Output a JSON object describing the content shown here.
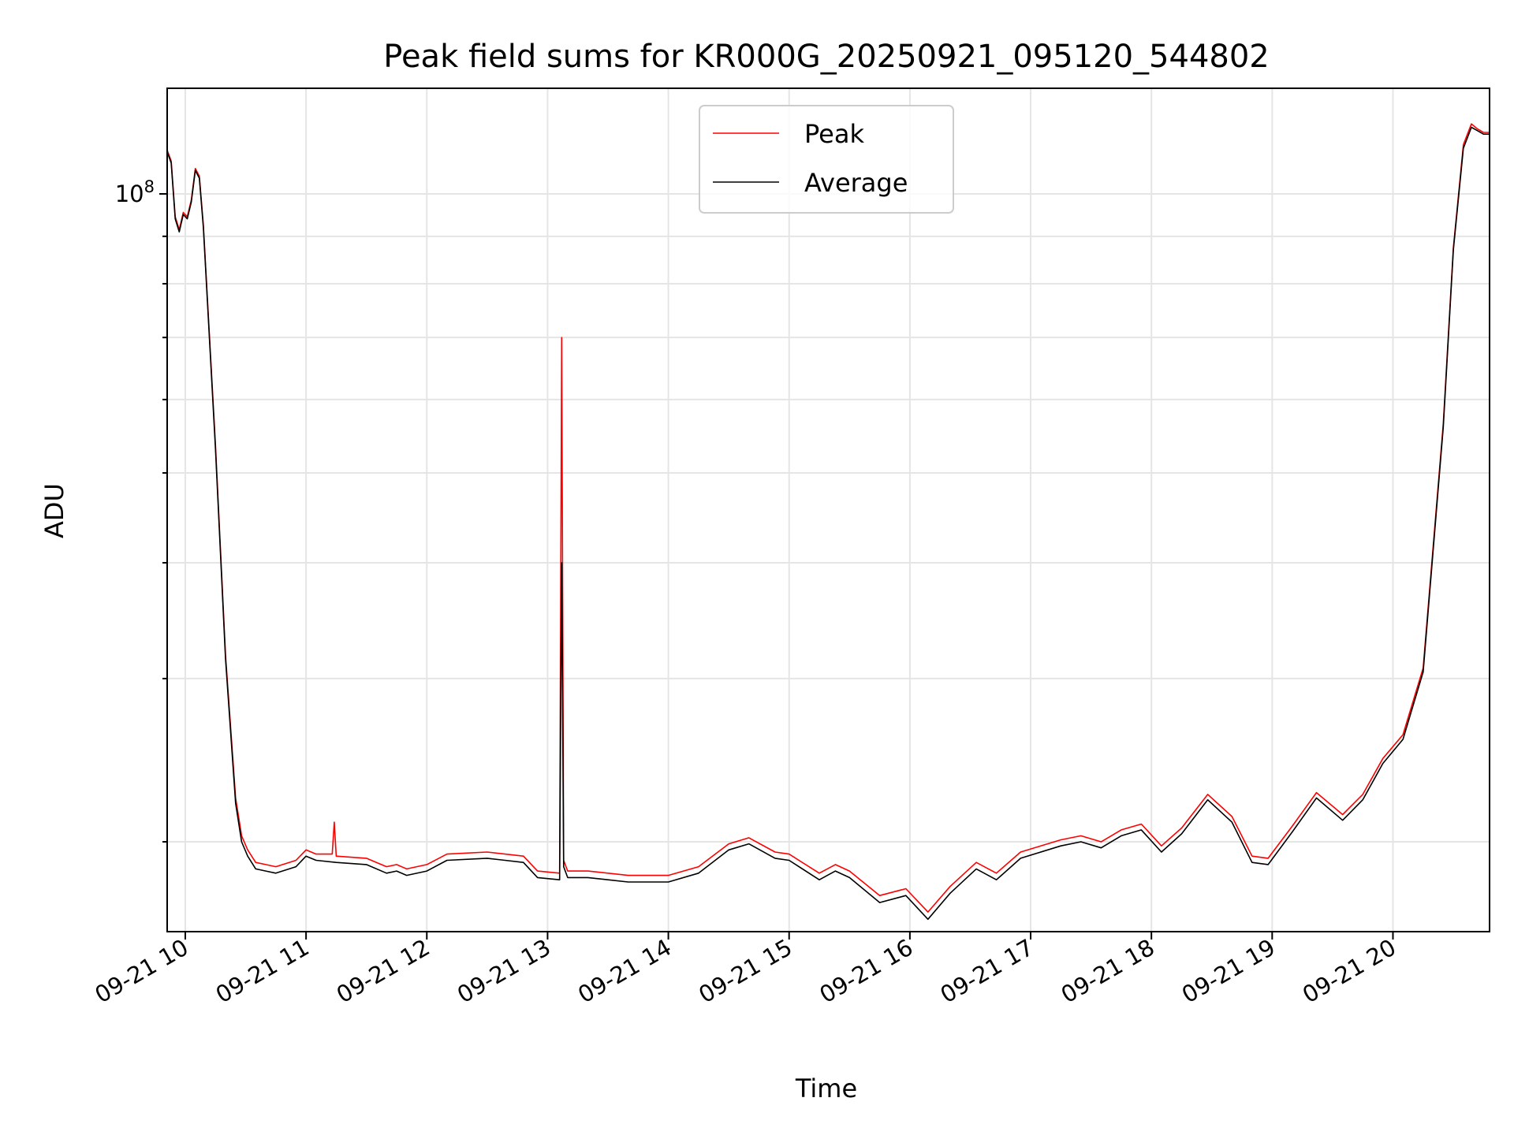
{
  "chart_data": {
    "type": "line",
    "title": "Peak field sums for KR000G_20250921_095120_544802",
    "xlabel": "Time",
    "ylabel": "ADU",
    "yscale": "log",
    "ytick_label": "10^8",
    "ylim": [
      16000000,
      130000000
    ],
    "xlim": [
      "2025-09-21 09:51",
      "2025-09-21 20:48"
    ],
    "x_ticks": [
      "09-21 10",
      "09-21 11",
      "09-21 12",
      "09-21 13",
      "09-21 14",
      "09-21 15",
      "09-21 16",
      "09-21 17",
      "09-21 18",
      "09-21 19",
      "09-21 20"
    ],
    "grid": true,
    "legend": {
      "position": "top-center",
      "entries": [
        "Peak",
        "Average"
      ]
    },
    "colors": {
      "Peak": "#ff0000",
      "Average": "#000000"
    },
    "series": [
      {
        "name": "Average",
        "x": [
          "2025-09-21 09:51",
          "2025-09-21 09:53",
          "2025-09-21 09:55",
          "2025-09-21 09:57",
          "2025-09-21 09:59",
          "2025-09-21 10:01",
          "2025-09-21 10:03",
          "2025-09-21 10:05",
          "2025-09-21 10:07",
          "2025-09-21 10:09",
          "2025-09-21 10:15",
          "2025-09-21 10:20",
          "2025-09-21 10:25",
          "2025-09-21 10:28",
          "2025-09-21 10:31",
          "2025-09-21 10:35",
          "2025-09-21 10:40",
          "2025-09-21 10:45",
          "2025-09-21 10:55",
          "2025-09-21 11:00",
          "2025-09-21 11:05",
          "2025-09-21 11:15",
          "2025-09-21 11:30",
          "2025-09-21 11:40",
          "2025-09-21 11:45",
          "2025-09-21 11:50",
          "2025-09-21 12:00",
          "2025-09-21 12:10",
          "2025-09-21 12:30",
          "2025-09-21 12:48",
          "2025-09-21 12:55",
          "2025-09-21 13:06",
          "2025-09-21 13:07",
          "2025-09-21 13:08",
          "2025-09-21 13:10",
          "2025-09-21 13:20",
          "2025-09-21 13:30",
          "2025-09-21 13:40",
          "2025-09-21 14:00",
          "2025-09-21 14:15",
          "2025-09-21 14:30",
          "2025-09-21 14:40",
          "2025-09-21 14:53",
          "2025-09-21 15:00",
          "2025-09-21 15:15",
          "2025-09-21 15:23",
          "2025-09-21 15:30",
          "2025-09-21 15:45",
          "2025-09-21 15:58",
          "2025-09-21 16:09",
          "2025-09-21 16:20",
          "2025-09-21 16:33",
          "2025-09-21 16:43",
          "2025-09-21 16:55",
          "2025-09-21 17:15",
          "2025-09-21 17:25",
          "2025-09-21 17:35",
          "2025-09-21 17:45",
          "2025-09-21 17:55",
          "2025-09-21 18:05",
          "2025-09-21 18:15",
          "2025-09-21 18:28",
          "2025-09-21 18:40",
          "2025-09-21 18:50",
          "2025-09-21 18:58",
          "2025-09-21 19:10",
          "2025-09-21 19:22",
          "2025-09-21 19:35",
          "2025-09-21 19:45",
          "2025-09-21 19:55",
          "2025-09-21 20:05",
          "2025-09-21 20:15",
          "2025-09-21 20:25",
          "2025-09-21 20:30",
          "2025-09-21 20:35",
          "2025-09-21 20:39",
          "2025-09-21 20:42",
          "2025-09-21 20:45",
          "2025-09-21 20:48"
        ],
        "values": [
          111000000,
          108000000,
          94000000,
          91000000,
          95000000,
          94000000,
          98000000,
          106000000,
          104000000,
          92000000,
          53000000,
          31500000,
          22000000,
          20000000,
          19300000,
          18700000,
          18600000,
          18500000,
          18800000,
          19300000,
          19100000,
          19000000,
          18900000,
          18500000,
          18600000,
          18400000,
          18600000,
          19100000,
          19200000,
          19000000,
          18300000,
          18200000,
          40000000,
          18800000,
          18300000,
          18300000,
          18200000,
          18100000,
          18100000,
          18500000,
          19600000,
          19900000,
          19200000,
          19100000,
          18200000,
          18600000,
          18300000,
          17200000,
          17500000,
          16500000,
          17600000,
          18700000,
          18200000,
          19200000,
          19800000,
          20000000,
          19700000,
          20300000,
          20600000,
          19500000,
          20400000,
          22200000,
          21000000,
          19000000,
          18900000,
          20500000,
          22300000,
          21100000,
          22200000,
          24300000,
          25800000,
          30500000,
          56000000,
          87000000,
          112000000,
          118000000,
          117000000,
          116000000,
          116000000
        ]
      },
      {
        "name": "Peak",
        "x": [
          "2025-09-21 09:51",
          "2025-09-21 09:53",
          "2025-09-21 09:55",
          "2025-09-21 09:57",
          "2025-09-21 09:59",
          "2025-09-21 10:01",
          "2025-09-21 10:03",
          "2025-09-21 10:05",
          "2025-09-21 10:07",
          "2025-09-21 10:09",
          "2025-09-21 10:15",
          "2025-09-21 10:20",
          "2025-09-21 10:25",
          "2025-09-21 10:28",
          "2025-09-21 10:31",
          "2025-09-21 10:35",
          "2025-09-21 10:40",
          "2025-09-21 10:45",
          "2025-09-21 10:55",
          "2025-09-21 11:00",
          "2025-09-21 11:05",
          "2025-09-21 11:13",
          "2025-09-21 11:14",
          "2025-09-21 11:15",
          "2025-09-21 11:30",
          "2025-09-21 11:40",
          "2025-09-21 11:45",
          "2025-09-21 11:50",
          "2025-09-21 12:00",
          "2025-09-21 12:10",
          "2025-09-21 12:30",
          "2025-09-21 12:48",
          "2025-09-21 12:55",
          "2025-09-21 13:06",
          "2025-09-21 13:07",
          "2025-09-21 13:08",
          "2025-09-21 13:10",
          "2025-09-21 13:20",
          "2025-09-21 13:30",
          "2025-09-21 13:40",
          "2025-09-21 14:00",
          "2025-09-21 14:15",
          "2025-09-21 14:30",
          "2025-09-21 14:40",
          "2025-09-21 14:53",
          "2025-09-21 15:00",
          "2025-09-21 15:15",
          "2025-09-21 15:23",
          "2025-09-21 15:30",
          "2025-09-21 15:45",
          "2025-09-21 15:58",
          "2025-09-21 16:09",
          "2025-09-21 16:20",
          "2025-09-21 16:33",
          "2025-09-21 16:43",
          "2025-09-21 16:55",
          "2025-09-21 17:15",
          "2025-09-21 17:25",
          "2025-09-21 17:35",
          "2025-09-21 17:45",
          "2025-09-21 17:55",
          "2025-09-21 18:05",
          "2025-09-21 18:15",
          "2025-09-21 18:28",
          "2025-09-21 18:40",
          "2025-09-21 18:50",
          "2025-09-21 18:58",
          "2025-09-21 19:10",
          "2025-09-21 19:22",
          "2025-09-21 19:35",
          "2025-09-21 19:45",
          "2025-09-21 19:55",
          "2025-09-21 20:05",
          "2025-09-21 20:15",
          "2025-09-21 20:25",
          "2025-09-21 20:30",
          "2025-09-21 20:35",
          "2025-09-21 20:39",
          "2025-09-21 20:42",
          "2025-09-21 20:45",
          "2025-09-21 20:48"
        ],
        "values": [
          111500000,
          108500000,
          94500000,
          91500000,
          95500000,
          94500000,
          98500000,
          106500000,
          104500000,
          92500000,
          53500000,
          31800000,
          22300000,
          20300000,
          19600000,
          19000000,
          18900000,
          18800000,
          19100000,
          19600000,
          19400000,
          19400000,
          21000000,
          19300000,
          19200000,
          18800000,
          18900000,
          18700000,
          18900000,
          19400000,
          19500000,
          19300000,
          18600000,
          18500000,
          70000000,
          19100000,
          18600000,
          18600000,
          18500000,
          18400000,
          18400000,
          18800000,
          19900000,
          20200000,
          19500000,
          19400000,
          18500000,
          18900000,
          18600000,
          17500000,
          17800000,
          16800000,
          17900000,
          19000000,
          18500000,
          19500000,
          20100000,
          20300000,
          20000000,
          20600000,
          20900000,
          19800000,
          20700000,
          22500000,
          21300000,
          19300000,
          19200000,
          20800000,
          22600000,
          21400000,
          22500000,
          24600000,
          26100000,
          30800000,
          56500000,
          87500000,
          113000000,
          119000000,
          117500000,
          116500000,
          116500000
        ]
      }
    ]
  }
}
